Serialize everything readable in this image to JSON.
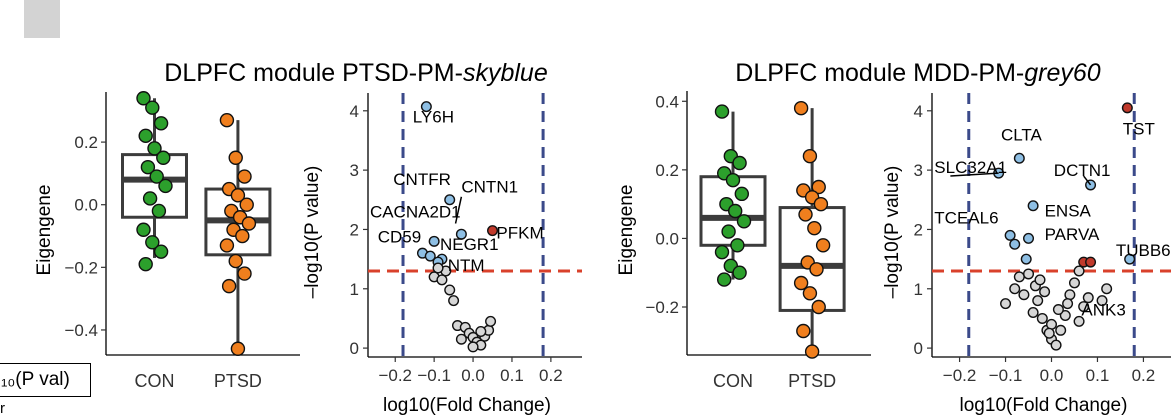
{
  "titles": [
    {
      "prefix": "DLPFC module PTSD-PM-",
      "italic": "skyblue"
    },
    {
      "prefix": "DLPFC module MDD-PM-",
      "italic": "grey60"
    }
  ],
  "legend": {
    "label": "₁₀(P val)",
    "sub": "r"
  },
  "colors": {
    "con": "#2ca02c",
    "ptsd": "#f07f1e",
    "blue": "#8ebfe4",
    "red": "#c0392b",
    "grey": "#d6d6d6",
    "vline": "#3b4a8a",
    "hline": "#d9412b",
    "box": "#3c3c3c"
  },
  "chart_data": [
    {
      "type": "box",
      "panel": "PTSD-PM-skyblue",
      "categories": [
        "CON",
        "PTSD"
      ],
      "ylabel": "Eigengene",
      "ylim": [
        -0.48,
        0.36
      ],
      "yticks": [
        {
          "v": 0.2,
          "t": "0.2"
        },
        {
          "v": 0.0,
          "t": "0.0"
        },
        {
          "v": -0.2,
          "t": "−0.2"
        },
        {
          "v": -0.4,
          "t": "−0.4"
        }
      ],
      "boxes": [
        {
          "q1": -0.04,
          "median": 0.08,
          "q3": 0.16,
          "low": -0.17,
          "high": 0.34
        },
        {
          "q1": -0.16,
          "median": -0.05,
          "q3": 0.05,
          "low": -0.46,
          "high": 0.27
        }
      ],
      "points": [
        [
          0.34,
          0.31,
          0.26,
          0.22,
          0.18,
          0.15,
          0.12,
          0.09,
          0.06,
          0.02,
          -0.02,
          -0.08,
          -0.12,
          -0.15,
          -0.19
        ],
        [
          0.27,
          0.15,
          0.09,
          0.05,
          0.03,
          0.0,
          -0.02,
          -0.04,
          -0.06,
          -0.08,
          -0.1,
          -0.13,
          -0.18,
          -0.22,
          -0.26,
          -0.46
        ]
      ]
    },
    {
      "type": "scatter",
      "panel": "PTSD-PM-skyblue volcano",
      "xlabel": "log10(Fold Change)",
      "ylabel": "–log10(P value)",
      "xlim": [
        -0.27,
        0.28
      ],
      "ylim": [
        -0.15,
        4.3
      ],
      "xticks": [
        {
          "v": -0.2,
          "t": "−0.2"
        },
        {
          "v": -0.1,
          "t": "−0.1"
        },
        {
          "v": 0.0,
          "t": "0.0"
        },
        {
          "v": 0.1,
          "t": "0.1"
        },
        {
          "v": 0.2,
          "t": "0.2"
        }
      ],
      "yticks": [
        {
          "v": 0,
          "t": "0"
        },
        {
          "v": 1,
          "t": "1"
        },
        {
          "v": 2,
          "t": "2"
        },
        {
          "v": 3,
          "t": "3"
        },
        {
          "v": 4,
          "t": "4"
        }
      ],
      "vlines": [
        -0.18,
        0.18
      ],
      "hline": 1.3,
      "points": [
        {
          "x": -0.12,
          "y": 4.07,
          "c": "blue"
        },
        {
          "x": -0.06,
          "y": 2.5,
          "c": "blue"
        },
        {
          "x": -0.03,
          "y": 1.92,
          "c": "blue"
        },
        {
          "x": -0.1,
          "y": 1.8,
          "c": "blue"
        },
        {
          "x": -0.13,
          "y": 1.6,
          "c": "blue"
        },
        {
          "x": -0.11,
          "y": 1.55,
          "c": "blue"
        },
        {
          "x": -0.08,
          "y": 1.5,
          "c": "blue"
        },
        {
          "x": -0.09,
          "y": 1.45,
          "c": "blue"
        },
        {
          "x": 0.05,
          "y": 1.98,
          "c": "red"
        },
        {
          "x": -0.1,
          "y": 1.2,
          "c": "grey"
        },
        {
          "x": -0.08,
          "y": 1.15,
          "c": "grey"
        },
        {
          "x": -0.06,
          "y": 0.98,
          "c": "grey"
        },
        {
          "x": -0.05,
          "y": 0.8,
          "c": "grey"
        },
        {
          "x": -0.07,
          "y": 1.3,
          "c": "grey"
        },
        {
          "x": -0.09,
          "y": 1.35,
          "c": "grey"
        },
        {
          "x": -0.04,
          "y": 0.38,
          "c": "grey"
        },
        {
          "x": -0.02,
          "y": 0.35,
          "c": "grey"
        },
        {
          "x": -0.01,
          "y": 0.25,
          "c": "grey"
        },
        {
          "x": 0.0,
          "y": 0.18,
          "c": "grey"
        },
        {
          "x": 0.01,
          "y": 0.1,
          "c": "grey"
        },
        {
          "x": 0.02,
          "y": 0.05,
          "c": "grey"
        },
        {
          "x": 0.03,
          "y": 0.2,
          "c": "grey"
        },
        {
          "x": 0.04,
          "y": 0.3,
          "c": "grey"
        },
        {
          "x": 0.045,
          "y": 0.45,
          "c": "grey"
        },
        {
          "x": 0.02,
          "y": 0.28,
          "c": "grey"
        },
        {
          "x": -0.03,
          "y": 0.15,
          "c": "grey"
        },
        {
          "x": 0.0,
          "y": 0.02,
          "c": "grey"
        }
      ],
      "labels": [
        {
          "text": "LY6H",
          "x": -0.155,
          "y": 3.8
        },
        {
          "text": "CNTFR",
          "x": -0.205,
          "y": 2.75
        },
        {
          "text": "CNTN1",
          "x": -0.03,
          "y": 2.62
        },
        {
          "text": "CACNA2D1",
          "x": -0.265,
          "y": 2.2
        },
        {
          "text": "PFKM",
          "x": 0.06,
          "y": 1.85
        },
        {
          "text": "CD59",
          "x": -0.245,
          "y": 1.78
        },
        {
          "text": "NEGR1",
          "x": -0.085,
          "y": 1.65
        },
        {
          "text": "NTM",
          "x": -0.065,
          "y": 1.3
        }
      ],
      "leaders": [
        {
          "x1": -0.03,
          "y1": 2.55,
          "x2": -0.045,
          "y2": 2.1
        }
      ]
    },
    {
      "type": "box",
      "panel": "MDD-PM-grey60",
      "categories": [
        "CON",
        "PTSD"
      ],
      "ylabel": "Eigengene",
      "ylim": [
        -0.34,
        0.43
      ],
      "yticks": [
        {
          "v": 0.4,
          "t": "0.4"
        },
        {
          "v": 0.2,
          "t": "0.2"
        },
        {
          "v": 0.0,
          "t": "0.0"
        },
        {
          "v": -0.2,
          "t": "−0.2"
        }
      ],
      "boxes": [
        {
          "q1": -0.02,
          "median": 0.06,
          "q3": 0.18,
          "low": -0.12,
          "high": 0.37
        },
        {
          "q1": -0.21,
          "median": -0.08,
          "q3": 0.09,
          "low": -0.33,
          "high": 0.38
        }
      ],
      "points": [
        [
          0.37,
          0.24,
          0.22,
          0.19,
          0.17,
          0.13,
          0.1,
          0.08,
          0.05,
          0.02,
          -0.02,
          -0.04,
          -0.08,
          -0.1,
          -0.12
        ],
        [
          0.38,
          0.24,
          0.15,
          0.14,
          0.12,
          0.1,
          0.07,
          0.03,
          -0.02,
          -0.07,
          -0.09,
          -0.13,
          -0.16,
          -0.2,
          -0.27,
          -0.33
        ]
      ]
    },
    {
      "type": "scatter",
      "panel": "MDD-PM-grey60 volcano",
      "xlabel": "log10(Fold Change)",
      "ylabel": "–log10(P value)",
      "xlim": [
        -0.26,
        0.26
      ],
      "ylim": [
        -0.15,
        4.3
      ],
      "xticks": [
        {
          "v": -0.2,
          "t": "−0.2"
        },
        {
          "v": -0.1,
          "t": "−0.1"
        },
        {
          "v": 0.0,
          "t": "0.0"
        },
        {
          "v": 0.1,
          "t": "0.1"
        },
        {
          "v": 0.2,
          "t": "0.2"
        }
      ],
      "yticks": [
        {
          "v": 0,
          "t": "0"
        },
        {
          "v": 1,
          "t": "1"
        },
        {
          "v": 2,
          "t": "2"
        },
        {
          "v": 3,
          "t": "3"
        },
        {
          "v": 4,
          "t": "4"
        }
      ],
      "vlines": [
        -0.18,
        0.18
      ],
      "hline": 1.3,
      "points": [
        {
          "x": 0.165,
          "y": 4.05,
          "c": "red"
        },
        {
          "x": -0.07,
          "y": 3.2,
          "c": "blue"
        },
        {
          "x": -0.115,
          "y": 2.95,
          "c": "blue"
        },
        {
          "x": 0.085,
          "y": 2.75,
          "c": "blue"
        },
        {
          "x": -0.04,
          "y": 2.4,
          "c": "blue"
        },
        {
          "x": -0.09,
          "y": 1.9,
          "c": "blue"
        },
        {
          "x": -0.05,
          "y": 1.85,
          "c": "blue"
        },
        {
          "x": -0.08,
          "y": 1.75,
          "c": "blue"
        },
        {
          "x": -0.055,
          "y": 1.5,
          "c": "blue"
        },
        {
          "x": 0.17,
          "y": 1.5,
          "c": "blue"
        },
        {
          "x": 0.07,
          "y": 1.45,
          "c": "red"
        },
        {
          "x": 0.085,
          "y": 1.45,
          "c": "red"
        },
        {
          "x": -0.1,
          "y": 0.75,
          "c": "grey"
        },
        {
          "x": -0.08,
          "y": 1.0,
          "c": "grey"
        },
        {
          "x": -0.07,
          "y": 1.2,
          "c": "grey"
        },
        {
          "x": -0.06,
          "y": 0.9,
          "c": "grey"
        },
        {
          "x": -0.05,
          "y": 1.25,
          "c": "grey"
        },
        {
          "x": -0.04,
          "y": 0.6,
          "c": "grey"
        },
        {
          "x": -0.03,
          "y": 0.8,
          "c": "grey"
        },
        {
          "x": -0.02,
          "y": 0.5,
          "c": "grey"
        },
        {
          "x": -0.01,
          "y": 0.3,
          "c": "grey"
        },
        {
          "x": 0.0,
          "y": 0.15,
          "c": "grey"
        },
        {
          "x": 0.01,
          "y": 0.05,
          "c": "grey"
        },
        {
          "x": 0.02,
          "y": 0.3,
          "c": "grey"
        },
        {
          "x": 0.03,
          "y": 0.55,
          "c": "grey"
        },
        {
          "x": 0.04,
          "y": 0.9,
          "c": "grey"
        },
        {
          "x": 0.05,
          "y": 1.1,
          "c": "grey"
        },
        {
          "x": 0.06,
          "y": 1.3,
          "c": "grey"
        },
        {
          "x": 0.07,
          "y": 0.7,
          "c": "grey"
        },
        {
          "x": 0.08,
          "y": 0.85,
          "c": "grey"
        },
        {
          "x": 0.06,
          "y": 0.45,
          "c": "grey"
        },
        {
          "x": -0.035,
          "y": 1.05,
          "c": "grey"
        },
        {
          "x": -0.025,
          "y": 1.15,
          "c": "grey"
        },
        {
          "x": -0.015,
          "y": 0.95,
          "c": "grey"
        },
        {
          "x": 0.015,
          "y": 0.65,
          "c": "grey"
        },
        {
          "x": 0.035,
          "y": 0.75,
          "c": "grey"
        },
        {
          "x": 0.12,
          "y": 1.0,
          "c": "grey"
        },
        {
          "x": 0.11,
          "y": 0.8,
          "c": "grey"
        },
        {
          "x": 0.0,
          "y": 0.4,
          "c": "grey"
        },
        {
          "x": -0.005,
          "y": 0.25,
          "c": "grey"
        }
      ],
      "labels": [
        {
          "text": "TST",
          "x": 0.155,
          "y": 3.6
        },
        {
          "text": "CLTA",
          "x": -0.11,
          "y": 3.5
        },
        {
          "text": "SLC32A1",
          "x": -0.255,
          "y": 2.95
        },
        {
          "text": "DCTN1",
          "x": 0.005,
          "y": 2.9
        },
        {
          "text": "ENSA",
          "x": -0.015,
          "y": 2.22
        },
        {
          "text": "TCEAL6",
          "x": -0.255,
          "y": 2.1
        },
        {
          "text": "PARVA",
          "x": -0.015,
          "y": 1.82
        },
        {
          "text": "TUBB6",
          "x": 0.14,
          "y": 1.55
        },
        {
          "text": "ANK3",
          "x": 0.065,
          "y": 0.55
        }
      ],
      "leaders": [
        {
          "x1": -0.22,
          "y1": 2.9,
          "x2": -0.115,
          "y2": 2.95
        },
        {
          "x1": 0.07,
          "y1": 2.9,
          "x2": 0.085,
          "y2": 2.75
        }
      ]
    }
  ]
}
